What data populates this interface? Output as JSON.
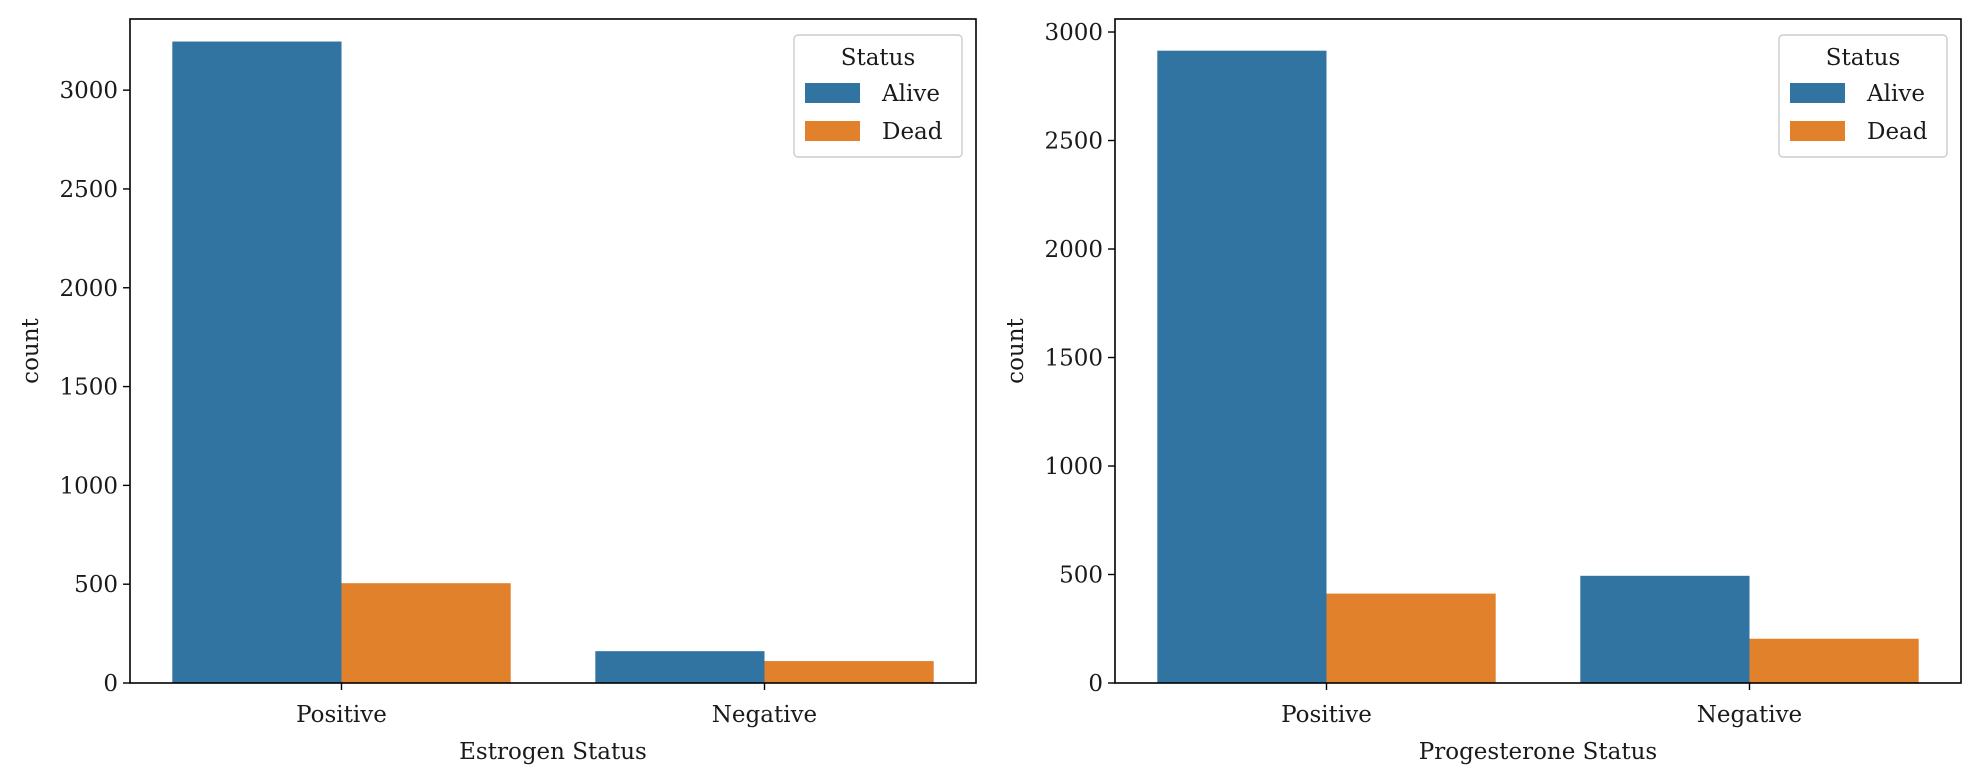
{
  "chart_data": [
    {
      "type": "bar",
      "xlabel": "Estrogen Status",
      "ylabel": "count",
      "categories": [
        "Positive",
        "Negative"
      ],
      "series": [
        {
          "name": "Alive",
          "values": [
            3246,
            161
          ]
        },
        {
          "name": "Dead",
          "values": [
            505,
            111
          ]
        }
      ],
      "ylim": [
        0,
        3360
      ],
      "yticks": [
        0,
        500,
        1000,
        1500,
        2000,
        2500,
        3000
      ],
      "legend": {
        "title": "Status",
        "placement": "top-right"
      },
      "grid": false
    },
    {
      "type": "bar",
      "xlabel": "Progesterone Status",
      "ylabel": "count",
      "categories": [
        "Positive",
        "Negative"
      ],
      "series": [
        {
          "name": "Alive",
          "values": [
            2914,
            494
          ]
        },
        {
          "name": "Dead",
          "values": [
            412,
            204
          ]
        }
      ],
      "ylim": [
        0,
        3060
      ],
      "yticks": [
        0,
        500,
        1000,
        1500,
        2000,
        2500,
        3000
      ],
      "legend": {
        "title": "Status",
        "placement": "top-right"
      },
      "grid": false
    }
  ],
  "colors": {
    "Alive": "#3274a1",
    "Dead": "#e1812c"
  }
}
